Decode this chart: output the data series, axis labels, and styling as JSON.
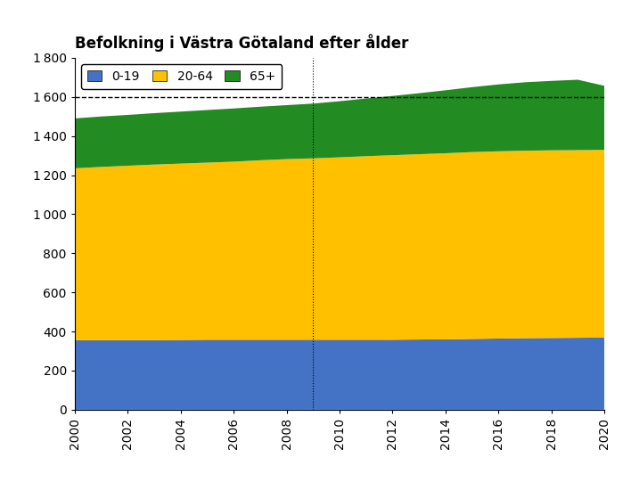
{
  "title": "Befolkning i Västra Götaland efter ålder",
  "years": [
    2000,
    2001,
    2002,
    2003,
    2004,
    2005,
    2006,
    2007,
    2008,
    2009,
    2010,
    2011,
    2012,
    2013,
    2014,
    2015,
    2016,
    2017,
    2018,
    2019,
    2020
  ],
  "age_0_19": [
    355,
    356,
    356,
    356,
    357,
    358,
    358,
    358,
    358,
    358,
    358,
    358,
    358,
    359,
    360,
    362,
    364,
    366,
    367,
    368,
    369
  ],
  "age_20_64": [
    880,
    886,
    892,
    898,
    902,
    906,
    911,
    918,
    924,
    928,
    933,
    939,
    944,
    948,
    952,
    956,
    958,
    959,
    960,
    960,
    960
  ],
  "age_65_plus": [
    255,
    258,
    260,
    263,
    266,
    269,
    272,
    274,
    276,
    280,
    287,
    295,
    303,
    312,
    322,
    332,
    342,
    350,
    355,
    360,
    328
  ],
  "color_0_19": "#4472C4",
  "color_20_64": "#FFC000",
  "color_65_plus": "#228B22",
  "legend_labels": [
    "0-19",
    "20-64",
    "65+"
  ],
  "ylim": [
    0,
    1800
  ],
  "yticks": [
    0,
    200,
    400,
    600,
    800,
    1000,
    1200,
    1400,
    1600,
    1800
  ],
  "dashed_hline": 1600,
  "dotted_vline": 2009
}
